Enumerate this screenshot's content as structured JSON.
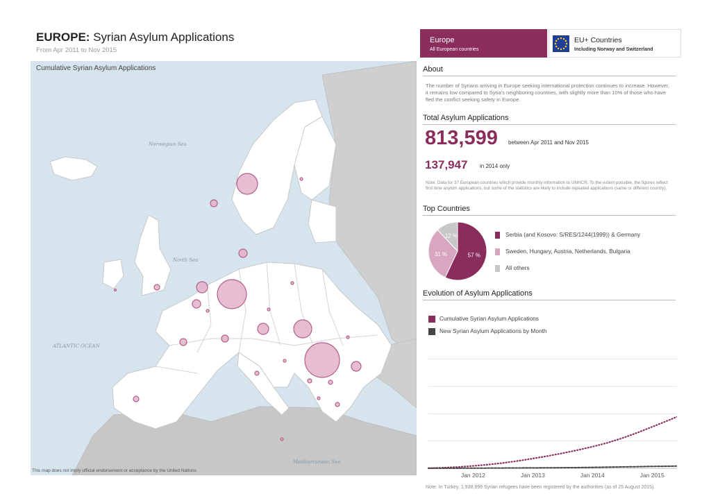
{
  "header": {
    "title_bold": "EUROPE:",
    "title_rest": " Syrian Asylum Applications",
    "subtitle": "From Apr 2011 to Nov 2015"
  },
  "map": {
    "title": "Cumulative Syrian Asylum Applications",
    "note": "This map does not imply official endorsement or acceptance by the United Nations",
    "seas": {
      "norwegian": "Norwegian Sea",
      "north": "North Sea",
      "atlantic": "ATLANTIC OCEAN",
      "mediterranean": "Mediterranean Sea"
    }
  },
  "tabs": {
    "europe": {
      "label": "Europe",
      "sub": "All European countries"
    },
    "eu": {
      "label": "EU+ Countries",
      "sub": "Including Norway and Switzerland"
    }
  },
  "about": {
    "heading": "About",
    "text": "The number of Syrians arriving in Europe seeking international protection continues to increase. However, it remains low compared to Syria's neighboring countries, with slightly more than 10% of those who have fled the conflict seeking safety in Europe."
  },
  "totals": {
    "heading": "Total Asylum Applications",
    "total": "813,599",
    "total_label": "between Apr 2011 and Nov 2015",
    "year": "137,947",
    "year_label": "in 2014 only",
    "note": "Note: Data for 37 European countries which provide monthly information to UNHCR. To the extent possible, the figures reflect first time asylum applications, but some of the statistics are likely to include repeated applications (same or different country)."
  },
  "top": {
    "heading": "Top Countries",
    "legend": [
      "Serbia (and Kosovo: S/RES/1244(1999)) & Germany",
      "Sweden, Hungary, Austria, Netherlands, Bulgaria",
      "All others"
    ]
  },
  "evolution": {
    "heading": "Evolution of Asylum Applications",
    "legend_cumulative": "Cumulative Syrian Asylum Applications",
    "legend_monthly": "New Syrian Asylum Applications by Month"
  },
  "bottom_note": "Note: In Turkey, 1,938,999 Syrian refugees have been registered by the authorities (as of 25 August 2015).",
  "colors": {
    "accent": "#8b2d5c",
    "mid": "#d9a6bf",
    "other": "#c8c8c8",
    "monthly": "#444444",
    "bubble": "#e3b3c9"
  },
  "chart_data": [
    {
      "type": "pie",
      "categories": [
        "Serbia (and Kosovo: S/RES/1244(1999)) & Germany",
        "Sweden, Hungary, Austria, Netherlands, Bulgaria",
        "All others"
      ],
      "values": [
        57,
        31,
        12
      ],
      "labels": [
        "57 %",
        "31 %",
        "12 %"
      ],
      "title": "Top Countries"
    },
    {
      "type": "line",
      "title": "Evolution of Asylum Applications",
      "x_ticks": [
        "Jan 2012",
        "Jan 2013",
        "Jan 2014",
        "Jan 2015"
      ],
      "x_range": [
        "2011-04",
        "2015-06"
      ],
      "ylim": [
        0,
        820000
      ],
      "series": [
        {
          "name": "Cumulative Syrian Asylum Applications",
          "x": [
            "2011-04",
            "2011-07",
            "2011-10",
            "2012-01",
            "2012-04",
            "2012-07",
            "2012-10",
            "2013-01",
            "2013-04",
            "2013-07",
            "2013-10",
            "2014-01",
            "2014-04",
            "2014-07",
            "2014-10",
            "2015-01",
            "2015-04",
            "2015-06"
          ],
          "values": [
            1000,
            4000,
            9000,
            16000,
            25000,
            36000,
            50000,
            66000,
            83000,
            102000,
            123000,
            146000,
            172000,
            204000,
            240000,
            280000,
            320000,
            348000
          ]
        },
        {
          "name": "New Syrian Asylum Applications by Month",
          "x": [
            "2011-04",
            "2011-10",
            "2012-04",
            "2012-10",
            "2013-04",
            "2013-10",
            "2014-04",
            "2014-10",
            "2015-01",
            "2015-04",
            "2015-06"
          ],
          "values": [
            500,
            800,
            1500,
            2500,
            3500,
            5000,
            8000,
            11000,
            13000,
            14000,
            15000
          ]
        }
      ]
    }
  ]
}
